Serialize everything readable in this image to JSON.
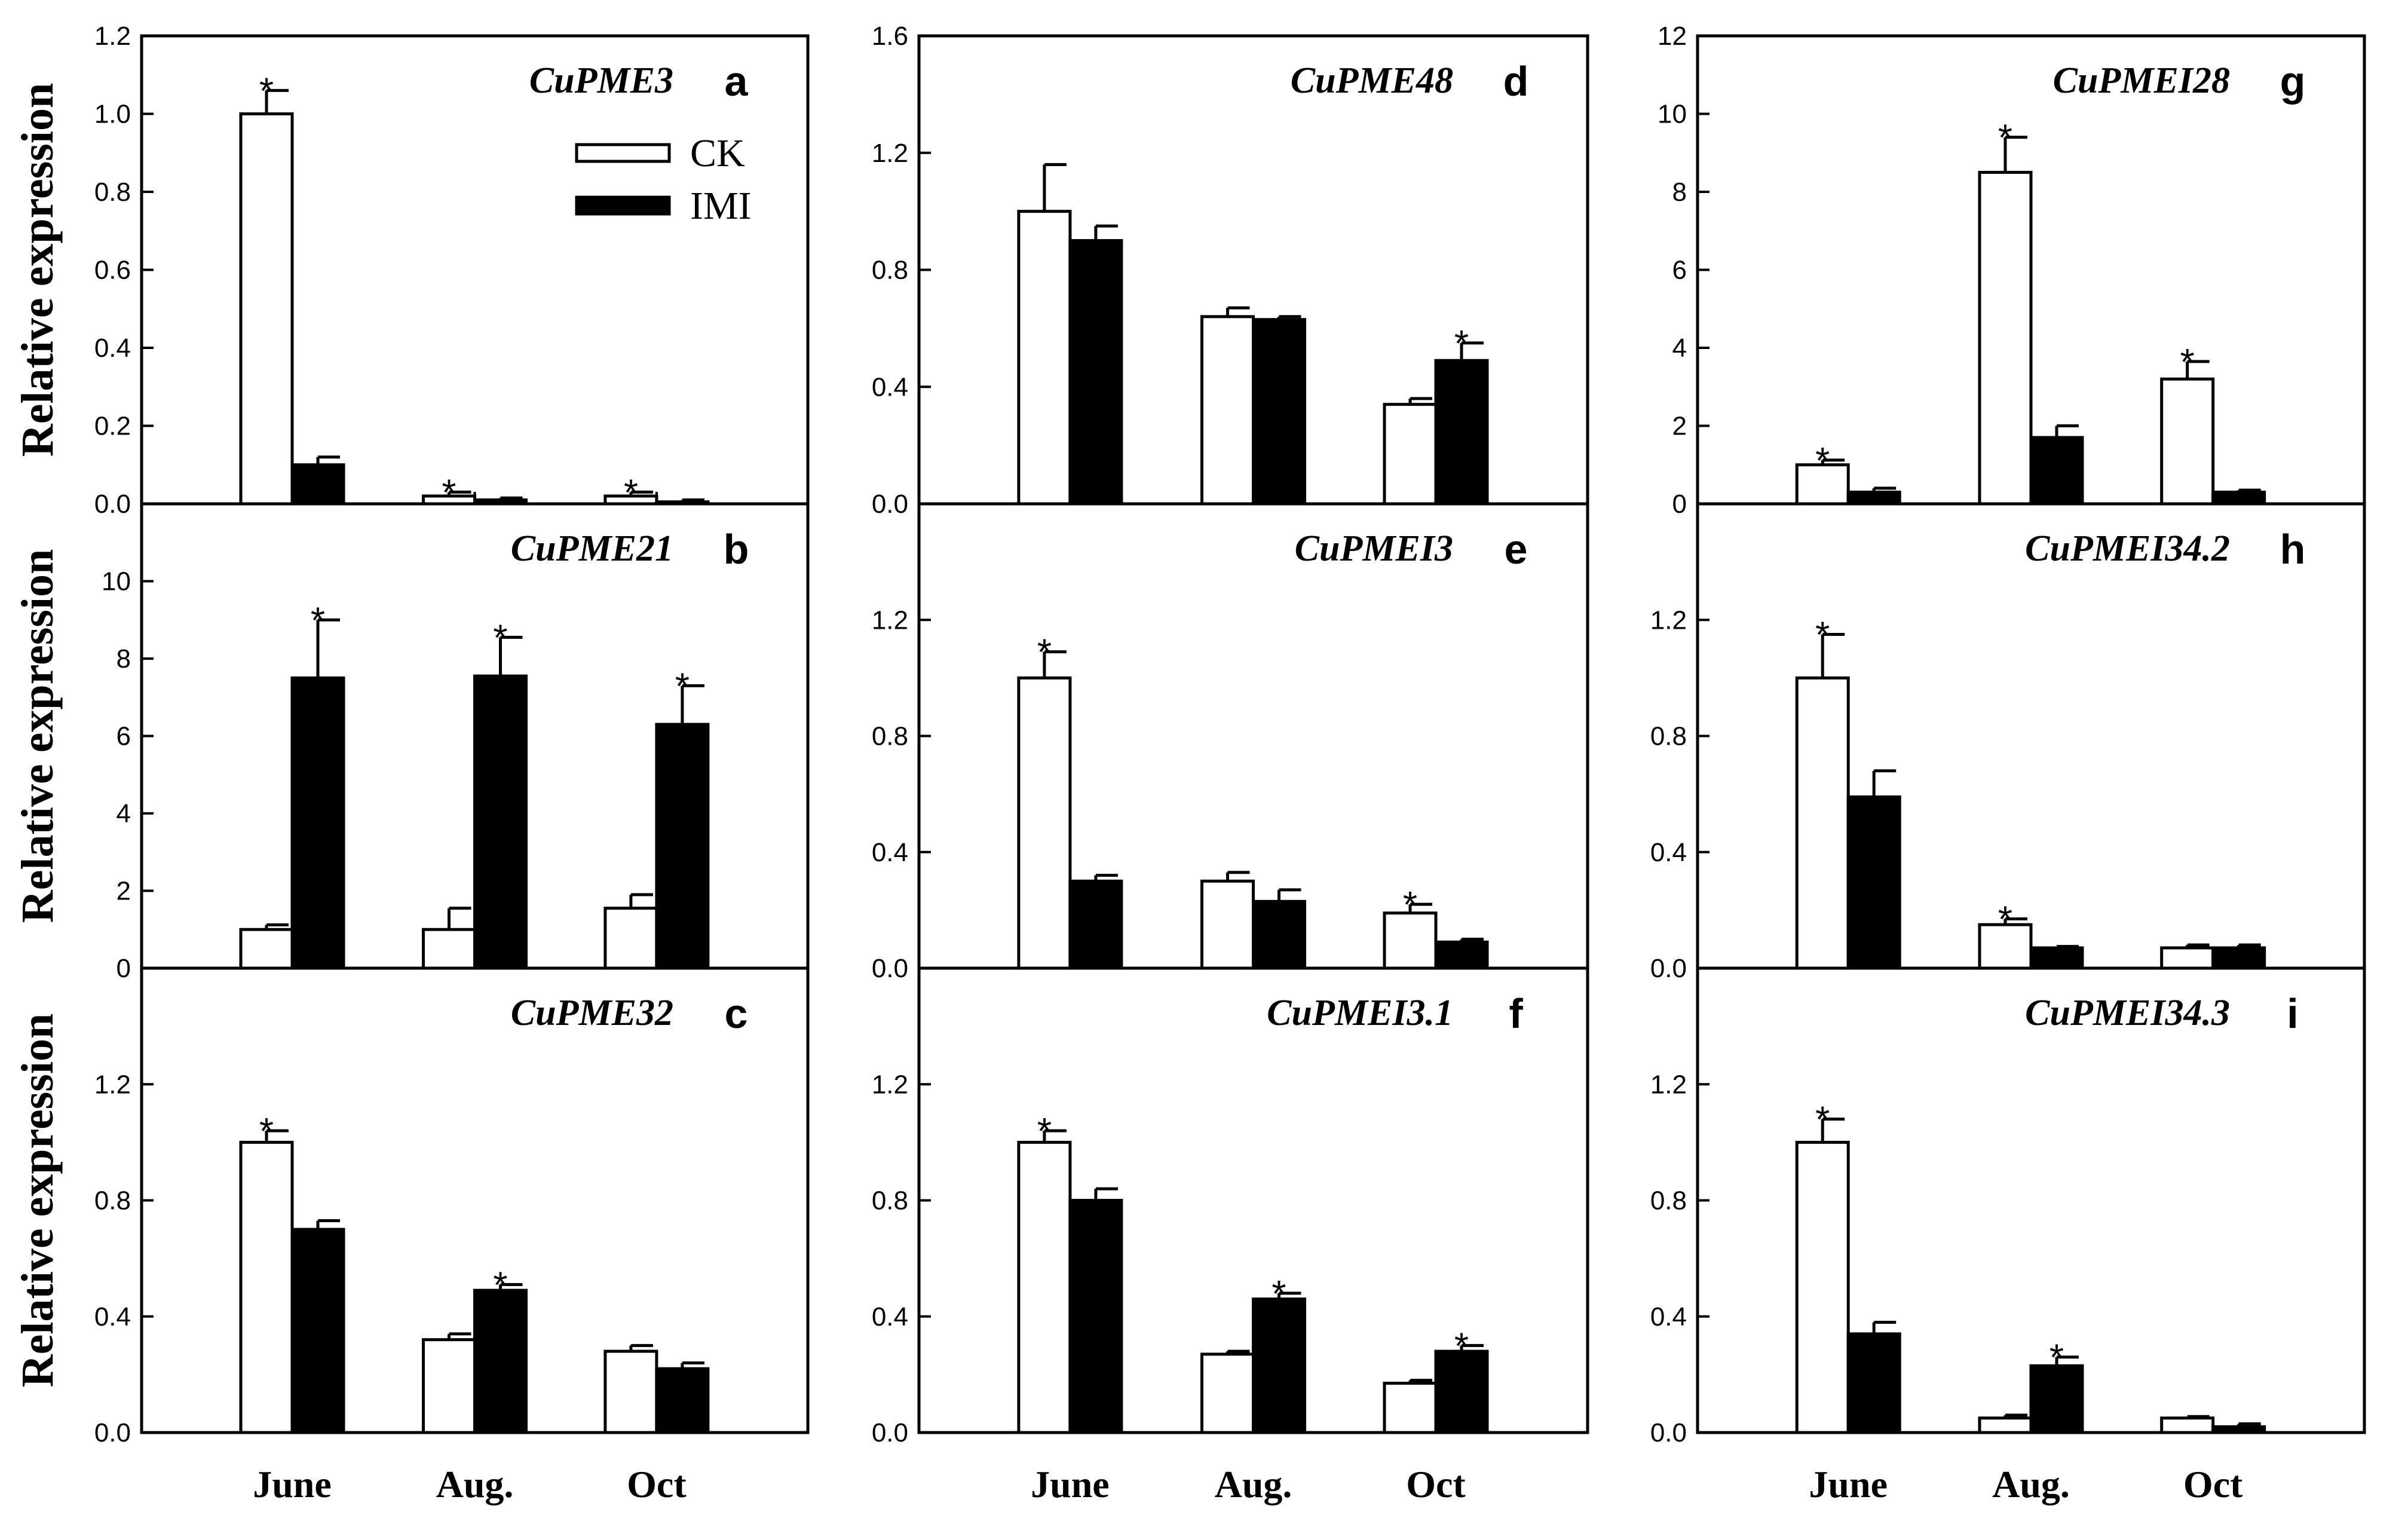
{
  "ylabel": "Relative expression",
  "categories": [
    "June",
    "Aug.",
    "Oct"
  ],
  "legend": [
    {
      "name": "CK",
      "fill": "#ffffff"
    },
    {
      "name": "IMI",
      "fill": "#000000"
    }
  ],
  "significance_marker": "*",
  "chart_data": [
    {
      "type": "bar",
      "panel": "a",
      "gene": "CuPME3",
      "ylim": [
        0,
        1.2
      ],
      "yticks": [
        "0.0",
        "0.2",
        "0.4",
        "0.6",
        "0.8",
        "1.0",
        "1.2"
      ],
      "categories": [
        "June",
        "Aug.",
        "Oct"
      ],
      "series": [
        {
          "name": "CK",
          "values": [
            1.0,
            0.02,
            0.02
          ],
          "errors": [
            0.06,
            0.01,
            0.01
          ],
          "sig": [
            true,
            true,
            true
          ]
        },
        {
          "name": "IMI",
          "values": [
            0.1,
            0.01,
            0.005
          ],
          "errors": [
            0.02,
            0.005,
            0.005
          ],
          "sig": [
            false,
            false,
            false
          ]
        }
      ]
    },
    {
      "type": "bar",
      "panel": "b",
      "gene": "CuPME21",
      "ylim": [
        0,
        12
      ],
      "yticks": [
        "0",
        "2",
        "4",
        "6",
        "8",
        "10"
      ],
      "categories": [
        "June",
        "Aug.",
        "Oct"
      ],
      "series": [
        {
          "name": "CK",
          "values": [
            1.0,
            1.0,
            1.55
          ],
          "errors": [
            0.12,
            0.55,
            0.35
          ],
          "sig": [
            false,
            false,
            false
          ]
        },
        {
          "name": "IMI",
          "values": [
            7.5,
            7.55,
            6.3
          ],
          "errors": [
            1.5,
            1.0,
            1.0
          ],
          "sig": [
            true,
            true,
            true
          ]
        }
      ]
    },
    {
      "type": "bar",
      "panel": "c",
      "gene": "CuPME32",
      "ylim": [
        0,
        1.6
      ],
      "yticks": [
        "0.0",
        "0.4",
        "0.8",
        "1.2"
      ],
      "categories": [
        "June",
        "Aug.",
        "Oct"
      ],
      "series": [
        {
          "name": "CK",
          "values": [
            1.0,
            0.32,
            0.28
          ],
          "errors": [
            0.04,
            0.02,
            0.02
          ],
          "sig": [
            true,
            false,
            false
          ]
        },
        {
          "name": "IMI",
          "values": [
            0.7,
            0.49,
            0.22
          ],
          "errors": [
            0.03,
            0.02,
            0.02
          ],
          "sig": [
            false,
            true,
            false
          ]
        }
      ]
    },
    {
      "type": "bar",
      "panel": "d",
      "gene": "CuPME48",
      "ylim": [
        0,
        1.6
      ],
      "yticks": [
        "0.0",
        "0.4",
        "0.8",
        "1.2",
        "1.6"
      ],
      "categories": [
        "June",
        "Aug.",
        "Oct"
      ],
      "series": [
        {
          "name": "CK",
          "values": [
            1.0,
            0.64,
            0.34
          ],
          "errors": [
            0.16,
            0.03,
            0.02
          ],
          "sig": [
            false,
            false,
            false
          ]
        },
        {
          "name": "IMI",
          "values": [
            0.9,
            0.63,
            0.49
          ],
          "errors": [
            0.05,
            0.01,
            0.06
          ],
          "sig": [
            false,
            false,
            true
          ]
        }
      ]
    },
    {
      "type": "bar",
      "panel": "e",
      "gene": "CuPMEI3",
      "ylim": [
        0,
        1.6
      ],
      "yticks": [
        "0.0",
        "0.4",
        "0.8",
        "1.2"
      ],
      "categories": [
        "June",
        "Aug.",
        "Oct"
      ],
      "series": [
        {
          "name": "CK",
          "values": [
            1.0,
            0.3,
            0.19
          ],
          "errors": [
            0.09,
            0.03,
            0.03
          ],
          "sig": [
            true,
            false,
            true
          ]
        },
        {
          "name": "IMI",
          "values": [
            0.3,
            0.23,
            0.09
          ],
          "errors": [
            0.02,
            0.04,
            0.01
          ],
          "sig": [
            false,
            false,
            false
          ]
        }
      ]
    },
    {
      "type": "bar",
      "panel": "f",
      "gene": "CuPMEI3.1",
      "ylim": [
        0,
        1.6
      ],
      "yticks": [
        "0.0",
        "0.4",
        "0.8",
        "1.2"
      ],
      "categories": [
        "June",
        "Aug.",
        "Oct"
      ],
      "series": [
        {
          "name": "CK",
          "values": [
            1.0,
            0.27,
            0.17
          ],
          "errors": [
            0.04,
            0.01,
            0.01
          ],
          "sig": [
            true,
            false,
            false
          ]
        },
        {
          "name": "IMI",
          "values": [
            0.8,
            0.46,
            0.28
          ],
          "errors": [
            0.04,
            0.02,
            0.02
          ],
          "sig": [
            false,
            true,
            true
          ]
        }
      ]
    },
    {
      "type": "bar",
      "panel": "g",
      "gene": "CuPMEI28",
      "ylim": [
        0,
        12
      ],
      "yticks": [
        "0",
        "2",
        "4",
        "6",
        "8",
        "10",
        "12"
      ],
      "categories": [
        "June",
        "Aug.",
        "Oct"
      ],
      "series": [
        {
          "name": "CK",
          "values": [
            1.0,
            8.5,
            3.2
          ],
          "errors": [
            0.12,
            0.9,
            0.45
          ],
          "sig": [
            true,
            true,
            true
          ]
        },
        {
          "name": "IMI",
          "values": [
            0.3,
            1.7,
            0.3
          ],
          "errors": [
            0.1,
            0.3,
            0.05
          ],
          "sig": [
            false,
            false,
            false
          ]
        }
      ]
    },
    {
      "type": "bar",
      "panel": "h",
      "gene": "CuPMEI34.2",
      "ylim": [
        0,
        1.6
      ],
      "yticks": [
        "0.0",
        "0.4",
        "0.8",
        "1.2"
      ],
      "categories": [
        "June",
        "Aug.",
        "Oct"
      ],
      "series": [
        {
          "name": "CK",
          "values": [
            1.0,
            0.15,
            0.07
          ],
          "errors": [
            0.15,
            0.02,
            0.01
          ],
          "sig": [
            true,
            true,
            false
          ]
        },
        {
          "name": "IMI",
          "values": [
            0.59,
            0.07,
            0.07
          ],
          "errors": [
            0.09,
            0.005,
            0.01
          ],
          "sig": [
            false,
            false,
            false
          ]
        }
      ]
    },
    {
      "type": "bar",
      "panel": "i",
      "gene": "CuPMEI34.3",
      "ylim": [
        0,
        1.6
      ],
      "yticks": [
        "0.0",
        "0.4",
        "0.8",
        "1.2"
      ],
      "categories": [
        "June",
        "Aug.",
        "Oct"
      ],
      "series": [
        {
          "name": "CK",
          "values": [
            1.0,
            0.05,
            0.05
          ],
          "errors": [
            0.08,
            0.01,
            0.005
          ],
          "sig": [
            true,
            false,
            false
          ]
        },
        {
          "name": "IMI",
          "values": [
            0.34,
            0.23,
            0.02
          ],
          "errors": [
            0.04,
            0.03,
            0.01
          ],
          "sig": [
            false,
            true,
            false
          ]
        }
      ]
    }
  ]
}
